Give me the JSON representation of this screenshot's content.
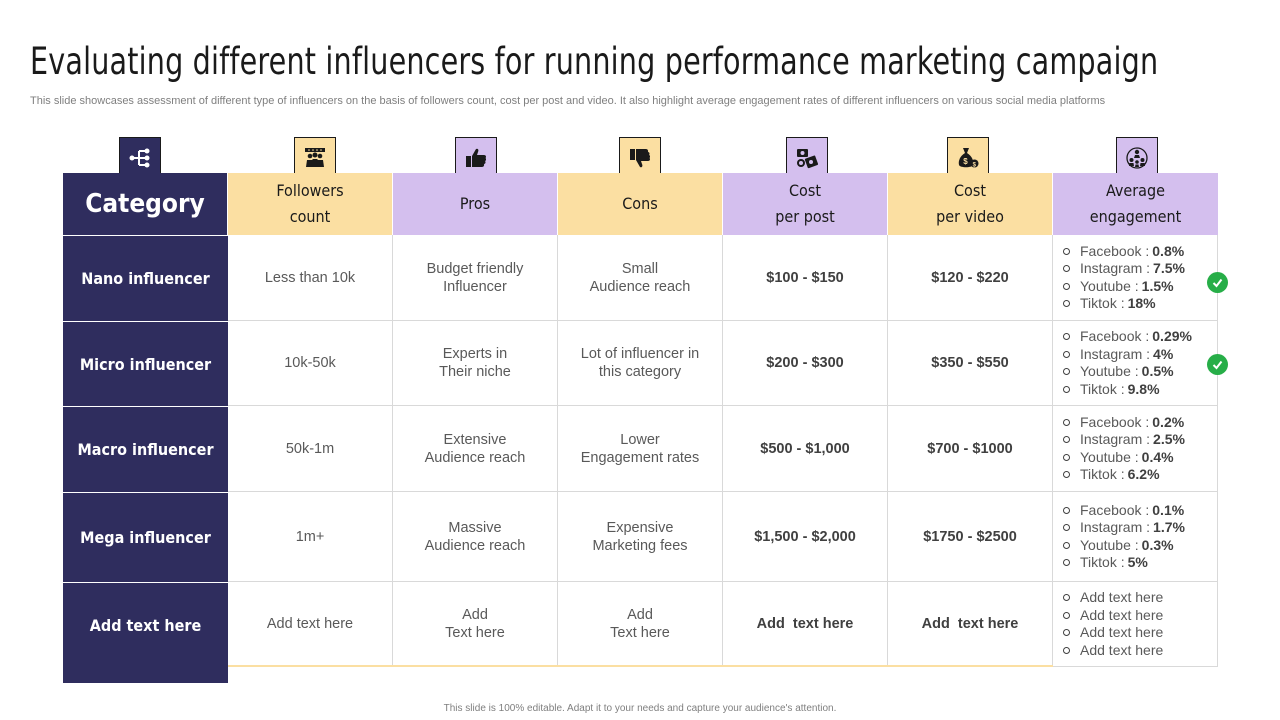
{
  "title": "Evaluating different influencers for running performance marketing campaign",
  "subtitle": "This slide showcases assessment of different type  of influencers on the basis of followers count, cost per post and video. It also highlight average engagement rates of different influencers on various social media platforms",
  "footer": "This slide is 100% editable. Adapt it to your needs and capture your audience's attention.",
  "icons": [
    "hierarchy-icon",
    "crowd-icon",
    "thumbs-up-icon",
    "thumbs-down-icon",
    "money-icon",
    "money-bag-icon",
    "network-icon"
  ],
  "colors": {
    "navy": "#2f2d5e",
    "yellow": "#fbdfa2",
    "purple": "#d4bfee",
    "check": "#27ae48"
  },
  "headers": {
    "category": "Category",
    "followers": [
      "Followers",
      "count"
    ],
    "pros": "Pros",
    "cons": "Cons",
    "cost_post": [
      "Cost",
      "per post"
    ],
    "cost_video": [
      "Cost",
      "per video"
    ],
    "engagement": [
      "Average",
      "engagement"
    ]
  },
  "rows": [
    {
      "category": "Nano influencer",
      "followers": [
        "Less than 10k"
      ],
      "pros": [
        "Budget friendly",
        "Influencer"
      ],
      "cons": [
        "Small",
        "Audience reach"
      ],
      "cost_post": "$100 - $150",
      "cost_video": "$120 - $220",
      "engagement": [
        {
          "label": "Facebook : ",
          "value": "0.8%"
        },
        {
          "label": "Instagram : ",
          "value": "7.5%"
        },
        {
          "label": "Youtube :",
          "value": "1.5%"
        },
        {
          "label": "Tiktok : ",
          "value": "18%"
        }
      ],
      "checked": true
    },
    {
      "category": "Micro influencer",
      "followers": [
        "10k-50k"
      ],
      "pros": [
        "Experts in",
        "Their niche"
      ],
      "cons": [
        "Lot of influencer in",
        "this category"
      ],
      "cost_post": "$200 - $300",
      "cost_video": "$350 - $550",
      "engagement": [
        {
          "label": "Facebook : ",
          "value": "0.29%"
        },
        {
          "label": "Instagram : ",
          "value": "4%"
        },
        {
          "label": "Youtube : ",
          "value": "0.5%"
        },
        {
          "label": "Tiktok : ",
          "value": "9.8%"
        }
      ],
      "checked": true
    },
    {
      "category": "Macro influencer",
      "followers": [
        "50k-1m"
      ],
      "pros": [
        "Extensive",
        "Audience reach"
      ],
      "cons": [
        "Lower",
        "Engagement rates"
      ],
      "cost_post": "$500 - $1,000",
      "cost_video": "$700 - $1000",
      "engagement": [
        {
          "label": "Facebook : ",
          "value": "0.2%"
        },
        {
          "label": "Instagram : ",
          "value": "2.5%"
        },
        {
          "label": "Youtube : ",
          "value": "0.4%"
        },
        {
          "label": "Tiktok : ",
          "value": "6.2%"
        }
      ],
      "checked": false
    },
    {
      "category": "Mega influencer",
      "followers": [
        "1m+"
      ],
      "pros": [
        "Massive",
        "Audience reach"
      ],
      "cons": [
        "Expensive",
        "Marketing fees"
      ],
      "cost_post": "$1,500 - $2,000",
      "cost_video": "$1750 - $2500",
      "engagement": [
        {
          "label": "Facebook : ",
          "value": "0.1%"
        },
        {
          "label": "Instagram : ",
          "value": "1.7%"
        },
        {
          "label": "Youtube : ",
          "value": "0.3%"
        },
        {
          "label": "Tiktok : ",
          "value": "5%"
        }
      ],
      "checked": false
    },
    {
      "category": "Add text here",
      "followers": [
        "Add text here"
      ],
      "pros": [
        "Add",
        "Text here"
      ],
      "cons": [
        "Add",
        "Text here"
      ],
      "cost_post": "Add  text here",
      "cost_video": "Add  text here",
      "engagement": [
        {
          "label": "Add text here",
          "value": ""
        },
        {
          "label": "Add text here",
          "value": ""
        },
        {
          "label": "Add text here",
          "value": ""
        },
        {
          "label": "Add text here",
          "value": ""
        }
      ],
      "checked": false
    }
  ]
}
